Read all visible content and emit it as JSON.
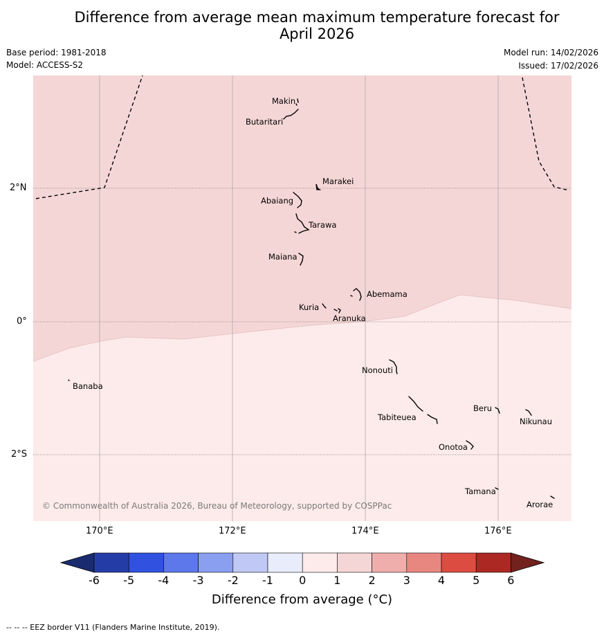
{
  "header": {
    "title_line1": "Difference from average mean maximum temperature forecast for",
    "title_line2": "April 2026",
    "base_period": "Base period: 1981-2018",
    "model": "Model: ACCESS-S2",
    "model_run": "Model run: 14/02/2026",
    "issued": "Issued: 17/02/2026"
  },
  "map": {
    "lat_labels": {
      "north": "2°N",
      "equator": "0°",
      "south": "2°S"
    },
    "lon_labels": [
      "170°E",
      "172°E",
      "174°E",
      "176°E"
    ],
    "zones": [
      {
        "range": "1 to 2",
        "color": "#f5d6d6",
        "region": "north"
      },
      {
        "range": "0 to 1",
        "color": "#fcebea",
        "region": "south"
      }
    ],
    "places": {
      "makin": "Makin",
      "butaritari": "Butaritari",
      "marakei": "Marakei",
      "abaiang": "Abaiang",
      "tarawa": "Tarawa",
      "maiana": "Maiana",
      "abemama": "Abemama",
      "kuria": "Kuria",
      "aranuka": "Aranuka",
      "nonouti": "Nonouti",
      "banaba": "Banaba",
      "beru": "Beru",
      "nikunau": "Nikunau",
      "tabiteuea": "Tabiteuea",
      "onotoa": "Onotoa",
      "tamana": "Tamana",
      "arorae": "Arorae"
    },
    "copyright": "© Commonwealth of Australia 2026, Bureau of Meteorology, supported by COSPPac"
  },
  "colorbar": {
    "ticks": [
      "-6",
      "-5",
      "-4",
      "-3",
      "-2",
      "-1",
      "0",
      "1",
      "2",
      "3",
      "4",
      "5",
      "6"
    ],
    "colors": [
      "#243da6",
      "#3151e0",
      "#5c78ea",
      "#8a9ff0",
      "#c0c8f5",
      "#e8ecfb",
      "#fcebea",
      "#f5d6d6",
      "#efaeab",
      "#e88780",
      "#dd4c40",
      "#ac2923"
    ],
    "under_color": "#1a2c6e",
    "over_color": "#72211d",
    "title": "Difference from average (°C)"
  },
  "footnote": "-- -- -- EEZ border V11 (Flanders Marine Institute, 2019)."
}
